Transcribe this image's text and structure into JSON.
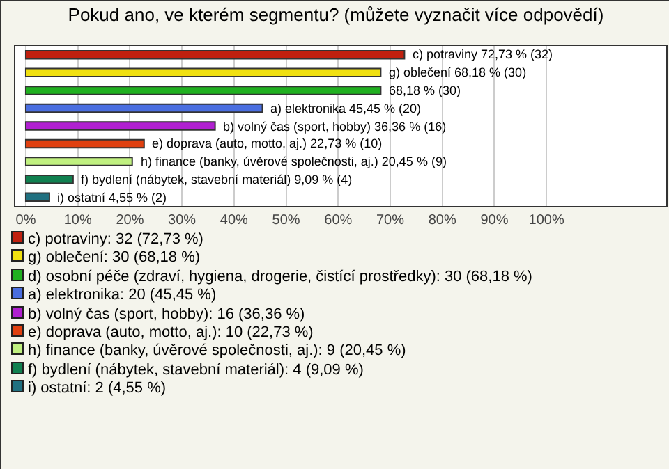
{
  "chart_data": {
    "type": "bar",
    "orientation": "horizontal",
    "title": "Pokud ano, ve kterém segmentu? (můžete vyznačit více odpovědí)",
    "categories": [
      null,
      null,
      null,
      null,
      null,
      null,
      null,
      null,
      null
    ],
    "xlim": [
      -2,
      123
    ],
    "xticks": [
      {
        "value": 0,
        "label": "0%"
      },
      {
        "value": 10,
        "label": "10%"
      },
      {
        "value": 20,
        "label": "20%"
      },
      {
        "value": 30,
        "label": "30%"
      },
      {
        "value": 40,
        "label": "40%"
      },
      {
        "value": 50,
        "label": "50%"
      },
      {
        "value": 60,
        "label": "60%"
      },
      {
        "value": 70,
        "label": "70%"
      },
      {
        "value": 80,
        "label": "80%"
      },
      {
        "value": 90,
        "label": "90%"
      },
      {
        "value": 100,
        "label": "100%"
      }
    ],
    "grid": "x",
    "legend": "bottom",
    "tick_labels": "x",
    "series": [
      {
        "name": "c) potraviny: 32 (72,73 %)",
        "color": "#c0200f",
        "values": [
          72.73,
          null,
          null,
          null,
          null,
          null,
          null,
          null,
          null
        ],
        "value_labels": [
          "c) potraviny 72,73 % (32)",
          null,
          null,
          null,
          null,
          null,
          null,
          null,
          null
        ]
      },
      {
        "name": "g) oblečení: 30 (68,18 %)",
        "color": "#f0e010",
        "values": [
          null,
          68.18,
          null,
          null,
          null,
          null,
          null,
          null,
          null
        ],
        "value_labels": [
          null,
          "g) oblečení 68,18 % (30)",
          null,
          null,
          null,
          null,
          null,
          null,
          null
        ]
      },
      {
        "name": "d) osobní péče (zdraví, hygiena, drogerie, čistící prostředky): 30 (68,18 %)",
        "color": "#20b020",
        "values": [
          null,
          null,
          68.18,
          null,
          null,
          null,
          null,
          null,
          null
        ],
        "value_labels": [
          null,
          null,
          "68,18 % (30)",
          null,
          null,
          null,
          null,
          null,
          null
        ]
      },
      {
        "name": "a) elektronika: 20 (45,45 %)",
        "color": "#4a6ee0",
        "values": [
          null,
          null,
          null,
          45.45,
          null,
          null,
          null,
          null,
          null
        ],
        "value_labels": [
          null,
          null,
          null,
          "a) elektronika 45,45 % (20)",
          null,
          null,
          null,
          null,
          null
        ]
      },
      {
        "name": "b) volný čas (sport, hobby): 16 (36,36 %)",
        "color": "#b020d0",
        "values": [
          null,
          null,
          null,
          null,
          36.36,
          null,
          null,
          null,
          null
        ],
        "value_labels": [
          null,
          null,
          null,
          null,
          "b) volný čas (sport, hobby) 36,36 % (16)",
          null,
          null,
          null,
          null
        ]
      },
      {
        "name": "e) doprava (auto, motto, aj.): 10 (22,73 %)",
        "color": "#e04010",
        "values": [
          null,
          null,
          null,
          null,
          null,
          22.73,
          null,
          null,
          null
        ],
        "value_labels": [
          null,
          null,
          null,
          null,
          null,
          "e) doprava (auto, motto, aj.) 22,73 % (10)",
          null,
          null,
          null
        ]
      },
      {
        "name": "h) finance (banky, úvěrové společnosti, aj.): 9 (20,45 %)",
        "color": "#c0f080",
        "values": [
          null,
          null,
          null,
          null,
          null,
          null,
          20.45,
          null,
          null
        ],
        "value_labels": [
          null,
          null,
          null,
          null,
          null,
          null,
          "h) finance (banky, úvěrové společnosti, aj.) 20,45 % (9)",
          null,
          null
        ]
      },
      {
        "name": "f) bydlení (nábytek, stavební materiál): 4 (9,09 %)",
        "color": "#108050",
        "values": [
          null,
          null,
          null,
          null,
          null,
          null,
          null,
          9.09,
          null
        ],
        "value_labels": [
          null,
          null,
          null,
          null,
          null,
          null,
          null,
          "f) bydlení (nábytek, stavební materiál) 9,09 % (4)",
          null
        ]
      },
      {
        "name": "i) ostatní: 2 (4,55 %)",
        "color": "#207080",
        "values": [
          null,
          null,
          null,
          null,
          null,
          null,
          null,
          null,
          4.55
        ],
        "value_labels": [
          null,
          null,
          null,
          null,
          null,
          null,
          null,
          null,
          "i) ostatní 4,55 % (2)"
        ]
      }
    ]
  }
}
